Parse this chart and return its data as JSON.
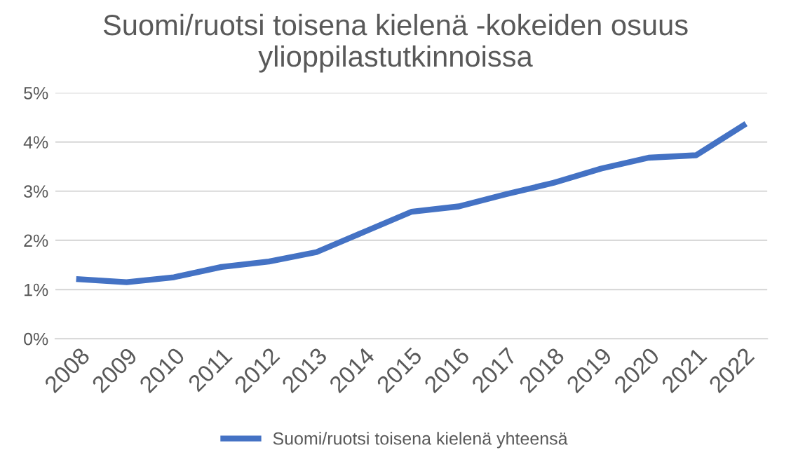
{
  "chart_data": {
    "type": "line",
    "title": "Suomi/ruotsi toisena kielenä -kokeiden osuus\nylioppilastutkinnoissa",
    "categories": [
      "2008",
      "2009",
      "2010",
      "2011",
      "2012",
      "2013",
      "2014",
      "2015",
      "2016",
      "2017",
      "2018",
      "2019",
      "2020",
      "2021",
      "2022"
    ],
    "series": [
      {
        "name": "Suomi/ruotsi toisena kielenä yhteensä",
        "color": "#4472c4",
        "values": [
          1.21,
          1.15,
          1.25,
          1.46,
          1.57,
          1.76,
          2.17,
          2.58,
          2.69,
          2.94,
          3.17,
          3.46,
          3.68,
          3.73,
          4.34
        ]
      }
    ],
    "ylim": [
      0,
      5
    ],
    "yticks": [
      {
        "value": 0,
        "label": "0%"
      },
      {
        "value": 1,
        "label": "1%"
      },
      {
        "value": 2,
        "label": "2%"
      },
      {
        "value": 3,
        "label": "3%"
      },
      {
        "value": 4,
        "label": "4%"
      },
      {
        "value": 5,
        "label": "5%"
      }
    ],
    "grid": "y",
    "legend": "bottom",
    "marker": "none",
    "line_style": "solid"
  }
}
